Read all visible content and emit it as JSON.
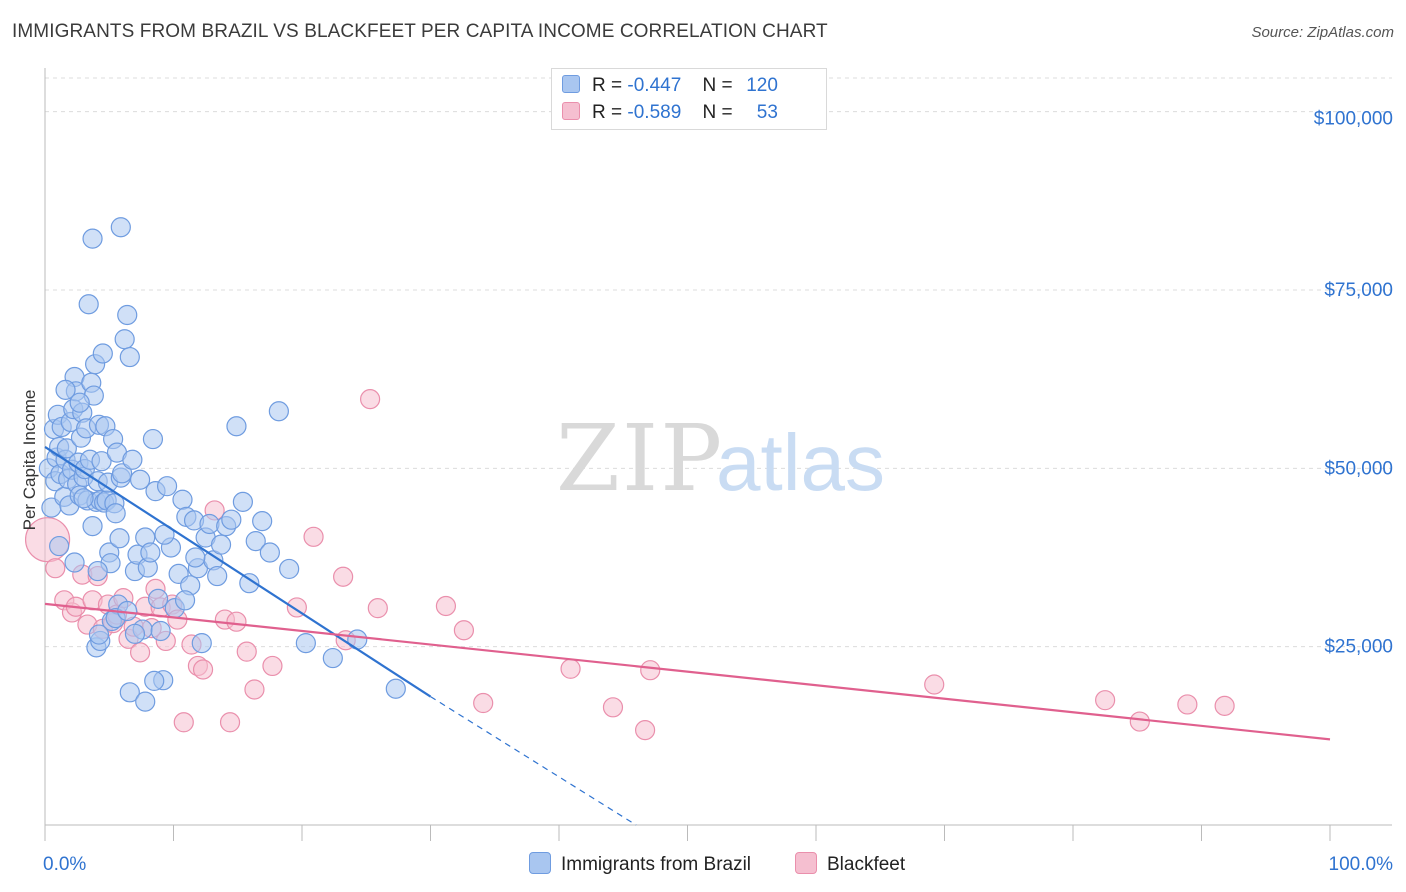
{
  "header": {
    "title": "IMMIGRANTS FROM BRAZIL VS BLACKFEET PER CAPITA INCOME CORRELATION CHART",
    "source": "Source: ZipAtlas.com"
  },
  "watermark": {
    "zip": "ZIP",
    "atlas": "atlas"
  },
  "stats": {
    "r_label": "R =",
    "n_label": "N =",
    "rows": [
      {
        "r": "-0.447",
        "n": "120"
      },
      {
        "r": "-0.589",
        "n": "53"
      }
    ]
  },
  "colors": {
    "blue_fill": "#a9c6f0",
    "blue_stroke": "#6f9ce0",
    "blue_line": "#2f73d0",
    "pink_fill": "#f5bfd0",
    "pink_stroke": "#ea8fac",
    "pink_line": "#e0608e",
    "tick_label": "#2f73d0",
    "grid": "#dcdcdc"
  },
  "chart_data": {
    "type": "scatter",
    "title": "IMMIGRANTS FROM BRAZIL VS BLACKFEET PER CAPITA INCOME CORRELATION CHART",
    "xlabel": "",
    "ylabel": "Per Capita Income",
    "xlim": [
      0,
      100
    ],
    "ylim": [
      0,
      105000
    ],
    "x_tick_labels": [
      "0.0%",
      "100.0%"
    ],
    "y_ticks": [
      25000,
      50000,
      75000,
      100000
    ],
    "y_tick_labels": [
      "$25,000",
      "$50,000",
      "$75,000",
      "$100,000"
    ],
    "legend_position": "bottom",
    "series": [
      {
        "name": "Immigrants from Brazil",
        "r": -0.447,
        "n": 120,
        "trend": {
          "x0": 0,
          "y0": 53000,
          "x1": 30,
          "y1": 18000,
          "dash_to_x": 46,
          "dash_to_y": 0
        },
        "points": [
          [
            0.3,
            50000
          ],
          [
            0.5,
            44500
          ],
          [
            0.7,
            55500
          ],
          [
            0.8,
            48200
          ],
          [
            0.9,
            51500
          ],
          [
            1.0,
            57500
          ],
          [
            1.1,
            53000
          ],
          [
            1.2,
            49200
          ],
          [
            1.3,
            55800
          ],
          [
            1.5,
            46000
          ],
          [
            1.6,
            51200
          ],
          [
            1.7,
            52800
          ],
          [
            1.8,
            48500
          ],
          [
            1.9,
            44800
          ],
          [
            2.0,
            56500
          ],
          [
            2.1,
            49800
          ],
          [
            2.2,
            58300
          ],
          [
            2.3,
            62800
          ],
          [
            2.4,
            60800
          ],
          [
            2.5,
            47800
          ],
          [
            2.6,
            50800
          ],
          [
            2.7,
            46200
          ],
          [
            2.8,
            54300
          ],
          [
            2.9,
            57800
          ],
          [
            3.0,
            48800
          ],
          [
            3.1,
            49900
          ],
          [
            3.2,
            55600
          ],
          [
            3.3,
            45500
          ],
          [
            3.4,
            73000
          ],
          [
            3.5,
            51200
          ],
          [
            3.6,
            62000
          ],
          [
            3.7,
            41900
          ],
          [
            3.8,
            60200
          ],
          [
            3.9,
            64600
          ],
          [
            4.0,
            45300
          ],
          [
            4.1,
            48200
          ],
          [
            4.2,
            56100
          ],
          [
            4.3,
            45500
          ],
          [
            4.4,
            51000
          ],
          [
            4.5,
            66100
          ],
          [
            4.6,
            45200
          ],
          [
            4.7,
            55900
          ],
          [
            4.8,
            45500
          ],
          [
            4.9,
            48000
          ],
          [
            5.0,
            38200
          ],
          [
            5.1,
            36700
          ],
          [
            5.2,
            28600
          ],
          [
            5.3,
            54100
          ],
          [
            5.4,
            45100
          ],
          [
            5.5,
            43700
          ],
          [
            5.6,
            52200
          ],
          [
            5.7,
            30900
          ],
          [
            5.8,
            40200
          ],
          [
            5.9,
            48700
          ],
          [
            6.0,
            49300
          ],
          [
            6.2,
            68100
          ],
          [
            6.4,
            71500
          ],
          [
            6.6,
            65600
          ],
          [
            6.8,
            51200
          ],
          [
            7.0,
            35600
          ],
          [
            7.2,
            37900
          ],
          [
            7.4,
            48400
          ],
          [
            7.6,
            27400
          ],
          [
            7.8,
            40300
          ],
          [
            8.0,
            36100
          ],
          [
            8.2,
            38200
          ],
          [
            8.4,
            54100
          ],
          [
            8.6,
            46800
          ],
          [
            8.8,
            31700
          ],
          [
            9.0,
            27200
          ],
          [
            9.2,
            20300
          ],
          [
            9.5,
            47500
          ],
          [
            9.8,
            38900
          ],
          [
            10.1,
            30400
          ],
          [
            10.4,
            35200
          ],
          [
            10.7,
            45600
          ],
          [
            11.0,
            43200
          ],
          [
            11.3,
            33600
          ],
          [
            11.6,
            42700
          ],
          [
            11.9,
            36000
          ],
          [
            12.2,
            25500
          ],
          [
            12.5,
            40300
          ],
          [
            12.8,
            42200
          ],
          [
            13.1,
            37100
          ],
          [
            13.4,
            34900
          ],
          [
            13.7,
            39300
          ],
          [
            14.1,
            41900
          ],
          [
            14.5,
            42800
          ],
          [
            14.9,
            55900
          ],
          [
            15.4,
            45300
          ],
          [
            15.9,
            33900
          ],
          [
            16.4,
            39800
          ],
          [
            16.9,
            42600
          ],
          [
            17.5,
            38200
          ],
          [
            18.2,
            58000
          ],
          [
            19.0,
            35900
          ],
          [
            20.3,
            25500
          ],
          [
            22.4,
            23400
          ],
          [
            24.3,
            26000
          ],
          [
            27.3,
            19100
          ],
          [
            5.9,
            83800
          ],
          [
            3.7,
            82200
          ],
          [
            2.7,
            59200
          ],
          [
            1.6,
            61000
          ],
          [
            3.0,
            45800
          ],
          [
            4.1,
            35600
          ],
          [
            4.0,
            24900
          ],
          [
            6.6,
            18600
          ],
          [
            7.8,
            17300
          ],
          [
            8.5,
            20200
          ],
          [
            4.3,
            25800
          ],
          [
            4.2,
            26700
          ],
          [
            5.5,
            29000
          ],
          [
            6.4,
            30000
          ],
          [
            7.0,
            26800
          ],
          [
            2.3,
            36800
          ],
          [
            1.1,
            39100
          ],
          [
            9.3,
            40700
          ],
          [
            11.7,
            37500
          ],
          [
            10.9,
            31500
          ]
        ]
      },
      {
        "name": "Blackfeet",
        "r": -0.589,
        "n": 53,
        "trend": {
          "x0": 0,
          "y0": 31000,
          "x1": 100,
          "y1": 12000
        },
        "points": [
          [
            0.2,
            40000
          ],
          [
            0.8,
            36000
          ],
          [
            1.5,
            31500
          ],
          [
            2.1,
            29800
          ],
          [
            2.4,
            30600
          ],
          [
            2.9,
            35100
          ],
          [
            3.3,
            28100
          ],
          [
            3.7,
            31500
          ],
          [
            4.1,
            34900
          ],
          [
            4.5,
            27500
          ],
          [
            4.9,
            30900
          ],
          [
            5.3,
            28300
          ],
          [
            5.6,
            29500
          ],
          [
            6.1,
            31800
          ],
          [
            6.5,
            26100
          ],
          [
            6.9,
            27800
          ],
          [
            7.4,
            24200
          ],
          [
            7.8,
            30600
          ],
          [
            8.3,
            27600
          ],
          [
            8.6,
            33100
          ],
          [
            9.0,
            30500
          ],
          [
            9.4,
            25800
          ],
          [
            9.9,
            30900
          ],
          [
            10.3,
            28800
          ],
          [
            10.8,
            14400
          ],
          [
            11.4,
            25300
          ],
          [
            11.9,
            22300
          ],
          [
            12.3,
            21800
          ],
          [
            13.2,
            44100
          ],
          [
            14.0,
            28800
          ],
          [
            14.4,
            14400
          ],
          [
            14.9,
            28500
          ],
          [
            15.7,
            24300
          ],
          [
            16.3,
            19000
          ],
          [
            17.7,
            22300
          ],
          [
            19.6,
            30500
          ],
          [
            20.9,
            40400
          ],
          [
            23.2,
            34800
          ],
          [
            23.4,
            25900
          ],
          [
            25.3,
            59700
          ],
          [
            25.9,
            30400
          ],
          [
            31.2,
            30700
          ],
          [
            32.6,
            27300
          ],
          [
            34.1,
            17100
          ],
          [
            40.9,
            21900
          ],
          [
            44.2,
            16500
          ],
          [
            46.7,
            13300
          ],
          [
            47.1,
            21700
          ],
          [
            69.2,
            19700
          ],
          [
            82.5,
            17500
          ],
          [
            85.2,
            14500
          ],
          [
            88.9,
            16900
          ],
          [
            91.8,
            16700
          ]
        ]
      }
    ]
  },
  "legend": {
    "items": [
      {
        "label": "Immigrants from Brazil"
      },
      {
        "label": "Blackfeet"
      }
    ]
  }
}
